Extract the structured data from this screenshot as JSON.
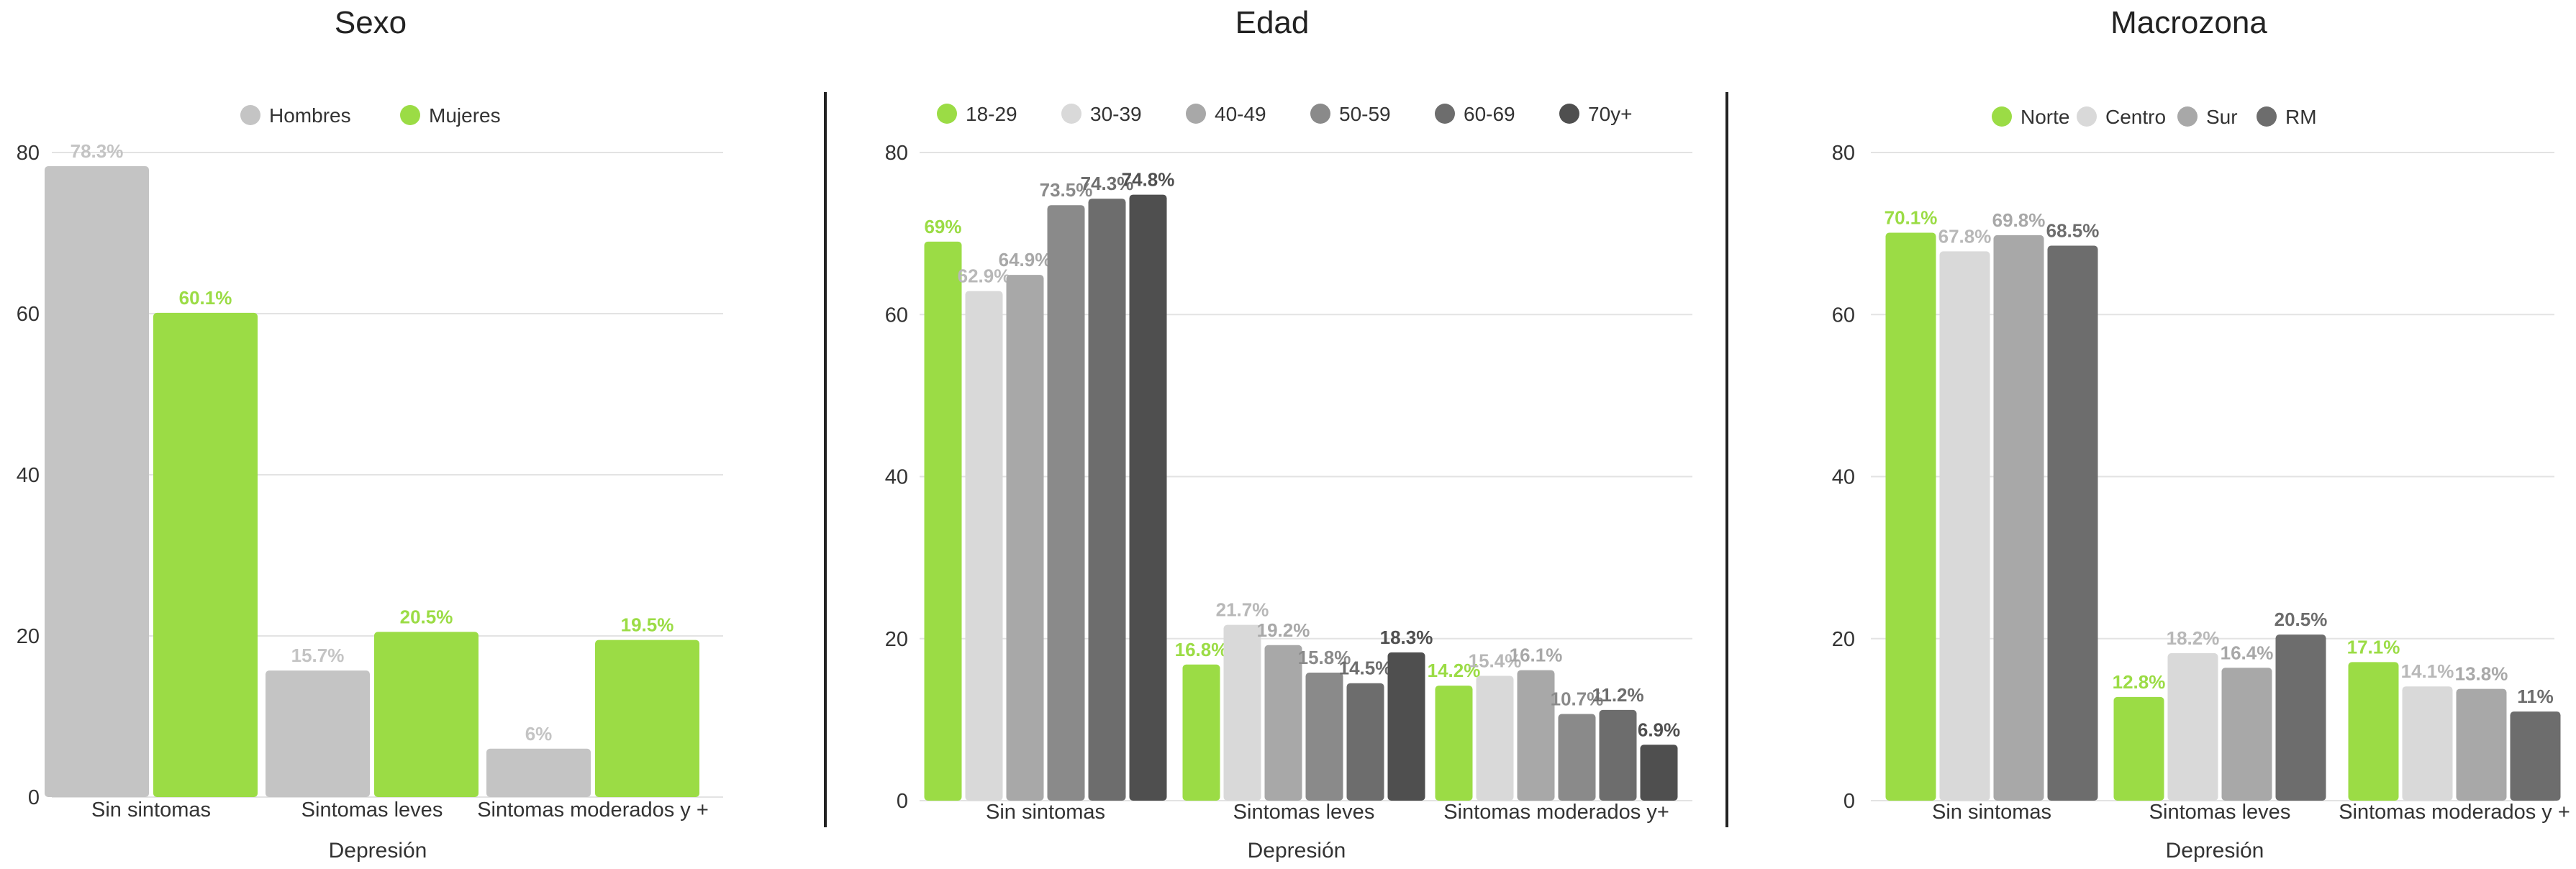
{
  "chart_data": [
    {
      "type": "bar",
      "title": "Sexo",
      "xlabel": "Depresión",
      "ylabel": "",
      "ylim": [
        0,
        80
      ],
      "yticks": [
        0,
        20,
        40,
        60,
        80
      ],
      "grid": true,
      "legend_position": "top",
      "categories": [
        "Sin sintomas",
        "Sintomas leves",
        "Sintomas moderados y +"
      ],
      "series": [
        {
          "name": "Hombres",
          "color": "#c4c4c4",
          "values": [
            78.3,
            15.7,
            6
          ],
          "labels": [
            "78.3%",
            "15.7%",
            "6%"
          ]
        },
        {
          "name": "Mujeres",
          "color": "#9bdc45",
          "values": [
            60.1,
            20.5,
            19.5
          ],
          "labels": [
            "60.1%",
            "20.5%",
            "19.5%"
          ]
        }
      ]
    },
    {
      "type": "bar",
      "title": "Edad",
      "xlabel": "Depresión",
      "ylabel": "",
      "ylim": [
        0,
        80
      ],
      "yticks": [
        0,
        20,
        40,
        60,
        80
      ],
      "grid": true,
      "legend_position": "top",
      "categories": [
        "Sin sintomas",
        "Sintomas leves",
        "Sintomas moderados y+"
      ],
      "series": [
        {
          "name": "18-29",
          "color": "#9bdc45",
          "values": [
            69,
            16.8,
            14.2
          ],
          "labels": [
            "69%",
            "16.8%",
            "14.2%"
          ]
        },
        {
          "name": "30-39",
          "color": "#d9d9d9",
          "values": [
            62.9,
            21.7,
            15.4
          ],
          "labels": [
            "62.9%",
            "21.7%",
            "15.4%"
          ]
        },
        {
          "name": "40-49",
          "color": "#a8a8a8",
          "values": [
            64.9,
            19.2,
            16.1
          ],
          "labels": [
            "64.9%",
            "19.2%",
            "16.1%"
          ]
        },
        {
          "name": "50-59",
          "color": "#8a8a8a",
          "values": [
            73.5,
            15.8,
            10.7
          ],
          "labels": [
            "73.5%",
            "15.8%",
            "10.7%"
          ]
        },
        {
          "name": "60-69",
          "color": "#6d6d6d",
          "values": [
            74.3,
            14.5,
            11.2
          ],
          "labels": [
            "74.3%",
            "14.5%",
            "11.2%"
          ]
        },
        {
          "name": "70y+",
          "color": "#4f4f4f",
          "values": [
            74.8,
            18.3,
            6.9
          ],
          "labels": [
            "74.8%",
            "18.3%",
            "6.9%"
          ]
        }
      ]
    },
    {
      "type": "bar",
      "title": "Macrozona",
      "xlabel": "Depresión",
      "ylabel": "",
      "ylim": [
        0,
        80
      ],
      "yticks": [
        0,
        20,
        40,
        60,
        80
      ],
      "grid": true,
      "legend_position": "top",
      "categories": [
        "Sin sintomas",
        "Sintomas leves",
        "Sintomas moderados y +"
      ],
      "series": [
        {
          "name": "Norte",
          "color": "#9bdc45",
          "values": [
            70.1,
            12.8,
            17.1
          ],
          "labels": [
            "70.1%",
            "12.8%",
            "17.1%"
          ]
        },
        {
          "name": "Centro",
          "color": "#d9d9d9",
          "values": [
            67.8,
            18.2,
            14.1
          ],
          "labels": [
            "67.8%",
            "18.2%",
            "14.1%"
          ]
        },
        {
          "name": "Sur",
          "color": "#a8a8a8",
          "values": [
            69.8,
            16.4,
            13.8
          ],
          "labels": [
            "69.8%",
            "16.4%",
            "13.8%"
          ]
        },
        {
          "name": "RM",
          "color": "#6d6d6d",
          "values": [
            68.5,
            20.5,
            11
          ],
          "labels": [
            "68.5%",
            "20.5%",
            "11%"
          ]
        }
      ]
    }
  ]
}
